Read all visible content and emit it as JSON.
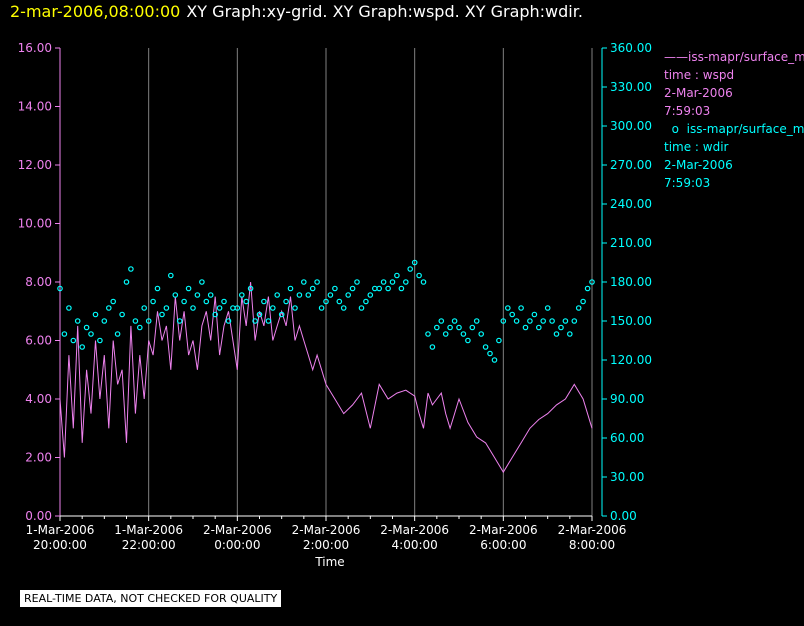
{
  "header": {
    "date": "2-mar-2006,08:00:00",
    "graphs": "XY Graph:xy-grid.  XY Graph:wspd.  XY Graph:wdir."
  },
  "colors": {
    "wspd": "#ee82ee",
    "wdir": "#00ffff",
    "left_axis": "#ee82ee",
    "right_axis": "#00ffff",
    "grid": "#808080",
    "text": "#ffffff"
  },
  "legend": {
    "wspd": {
      "name": "iss-mapr/surface_m",
      "var": "time : wspd",
      "date": "2-Mar-2006",
      "time": "7:59:03"
    },
    "wdir": {
      "name": "iss-mapr/surface_m",
      "var": "time : wdir",
      "date": "2-Mar-2006",
      "time": "7:59:03"
    }
  },
  "notice": "REAL-TIME DATA, NOT CHECKED FOR QUALITY",
  "chart_data": {
    "type": "line",
    "xlabel": "Time",
    "x_tick_labels": [
      [
        "1-Mar-2006",
        "20:00:00"
      ],
      [
        "1-Mar-2006",
        "22:00:00"
      ],
      [
        "2-Mar-2006",
        "0:00:00"
      ],
      [
        "2-Mar-2006",
        "2:00:00"
      ],
      [
        "2-Mar-2006",
        "4:00:00"
      ],
      [
        "2-Mar-2006",
        "6:00:00"
      ],
      [
        "2-Mar-2006",
        "8:00:00"
      ]
    ],
    "xlim_hours": [
      0,
      12
    ],
    "y_left": {
      "label": "wspd",
      "ylim": [
        0,
        16
      ],
      "ticks": [
        "0.00",
        "2.00",
        "4.00",
        "6.00",
        "8.00",
        "10.00",
        "12.00",
        "14.00",
        "16.00"
      ]
    },
    "y_right": {
      "label": "wdir",
      "ylim": [
        0,
        360
      ],
      "ticks": [
        "0.00",
        "30.00",
        "60.00",
        "90.00",
        "120.00",
        "150.00",
        "180.00",
        "210.00",
        "240.00",
        "270.00",
        "300.00",
        "330.00",
        "360.00"
      ]
    },
    "series": [
      {
        "name": "wspd",
        "style": "line",
        "axis": "left",
        "x_hours": [
          0,
          0.1,
          0.2,
          0.3,
          0.4,
          0.5,
          0.6,
          0.7,
          0.8,
          0.9,
          1.0,
          1.1,
          1.2,
          1.3,
          1.4,
          1.5,
          1.6,
          1.7,
          1.8,
          1.9,
          2.0,
          2.1,
          2.2,
          2.3,
          2.4,
          2.5,
          2.6,
          2.7,
          2.8,
          2.9,
          3.0,
          3.1,
          3.2,
          3.3,
          3.4,
          3.5,
          3.6,
          3.7,
          3.8,
          3.9,
          4.0,
          4.1,
          4.2,
          4.3,
          4.4,
          4.5,
          4.6,
          4.7,
          4.8,
          4.9,
          5.0,
          5.1,
          5.2,
          5.3,
          5.4,
          5.5,
          5.6,
          5.7,
          5.8,
          5.9,
          6.0,
          6.2,
          6.4,
          6.6,
          6.8,
          7.0,
          7.2,
          7.4,
          7.6,
          7.8,
          8.0,
          8.1,
          8.2,
          8.3,
          8.4,
          8.5,
          8.6,
          8.7,
          8.8,
          8.9,
          9.0,
          9.2,
          9.4,
          9.6,
          9.8,
          10.0,
          10.2,
          10.4,
          10.6,
          10.8,
          11.0,
          11.2,
          11.4,
          11.6,
          11.8,
          12.0
        ],
        "values": [
          4.0,
          2.0,
          5.5,
          3.0,
          6.5,
          2.5,
          5.0,
          3.5,
          6.0,
          4.0,
          5.5,
          3.0,
          6.0,
          4.5,
          5.0,
          2.5,
          6.5,
          3.5,
          5.5,
          4.0,
          6.0,
          5.5,
          7.0,
          6.0,
          6.5,
          5.0,
          7.5,
          6.0,
          7.0,
          5.5,
          6.0,
          5.0,
          6.5,
          7.0,
          6.0,
          7.5,
          5.5,
          6.5,
          7.0,
          6.0,
          5.0,
          7.5,
          6.5,
          8.0,
          6.0,
          7.0,
          6.5,
          7.5,
          6.0,
          6.5,
          7.0,
          6.5,
          7.5,
          6.0,
          6.5,
          6.0,
          5.5,
          5.0,
          5.5,
          5.0,
          4.5,
          4.0,
          3.5,
          3.8,
          4.2,
          3.0,
          4.5,
          4.0,
          4.2,
          4.3,
          4.1,
          3.5,
          3.0,
          4.2,
          3.8,
          4.0,
          4.2,
          3.5,
          3.0,
          3.5,
          4.0,
          3.2,
          2.7,
          2.5,
          2.0,
          1.5,
          2.0,
          2.5,
          3.0,
          3.3,
          3.5,
          3.8,
          4.0,
          4.5,
          4.0,
          3.0
        ]
      },
      {
        "name": "wdir",
        "style": "markers",
        "axis": "right",
        "x_hours": [
          0,
          0.1,
          0.2,
          0.3,
          0.4,
          0.5,
          0.6,
          0.7,
          0.8,
          0.9,
          1.0,
          1.1,
          1.2,
          1.3,
          1.4,
          1.5,
          1.6,
          1.7,
          1.8,
          1.9,
          2.0,
          2.1,
          2.2,
          2.3,
          2.4,
          2.5,
          2.6,
          2.7,
          2.8,
          2.9,
          3.0,
          3.1,
          3.2,
          3.3,
          3.4,
          3.5,
          3.6,
          3.7,
          3.8,
          3.9,
          4.0,
          4.1,
          4.2,
          4.3,
          4.4,
          4.5,
          4.6,
          4.7,
          4.8,
          4.9,
          5.0,
          5.1,
          5.2,
          5.3,
          5.4,
          5.5,
          5.6,
          5.7,
          5.8,
          5.9,
          6.0,
          6.1,
          6.2,
          6.3,
          6.4,
          6.5,
          6.6,
          6.7,
          6.8,
          6.9,
          7.0,
          7.1,
          7.2,
          7.3,
          7.4,
          7.5,
          7.6,
          7.7,
          7.8,
          7.9,
          8.0,
          8.1,
          8.2,
          8.3,
          8.4,
          8.5,
          8.6,
          8.7,
          8.8,
          8.9,
          9.0,
          9.1,
          9.2,
          9.3,
          9.4,
          9.5,
          9.6,
          9.7,
          9.8,
          9.9,
          10.0,
          10.1,
          10.2,
          10.3,
          10.4,
          10.5,
          10.6,
          10.7,
          10.8,
          10.9,
          11.0,
          11.1,
          11.2,
          11.3,
          11.4,
          11.5,
          11.6,
          11.7,
          11.8,
          11.9,
          12.0
        ],
        "values": [
          175,
          140,
          160,
          135,
          150,
          130,
          145,
          140,
          155,
          135,
          150,
          160,
          165,
          140,
          155,
          180,
          190,
          150,
          145,
          160,
          150,
          165,
          175,
          155,
          160,
          185,
          170,
          150,
          165,
          175,
          160,
          170,
          180,
          165,
          170,
          155,
          160,
          165,
          150,
          160,
          160,
          170,
          165,
          175,
          150,
          155,
          165,
          150,
          160,
          170,
          155,
          165,
          175,
          160,
          170,
          180,
          170,
          175,
          180,
          160,
          165,
          170,
          175,
          165,
          160,
          170,
          175,
          180,
          160,
          165,
          170,
          175,
          175,
          180,
          175,
          180,
          185,
          175,
          180,
          190,
          195,
          185,
          180,
          140,
          130,
          145,
          150,
          140,
          145,
          150,
          145,
          140,
          135,
          145,
          150,
          140,
          130,
          125,
          120,
          135,
          150,
          160,
          155,
          150,
          160,
          145,
          150,
          155,
          145,
          150,
          160,
          150,
          140,
          145,
          150,
          140,
          150,
          160,
          165,
          175,
          180
        ]
      }
    ]
  }
}
